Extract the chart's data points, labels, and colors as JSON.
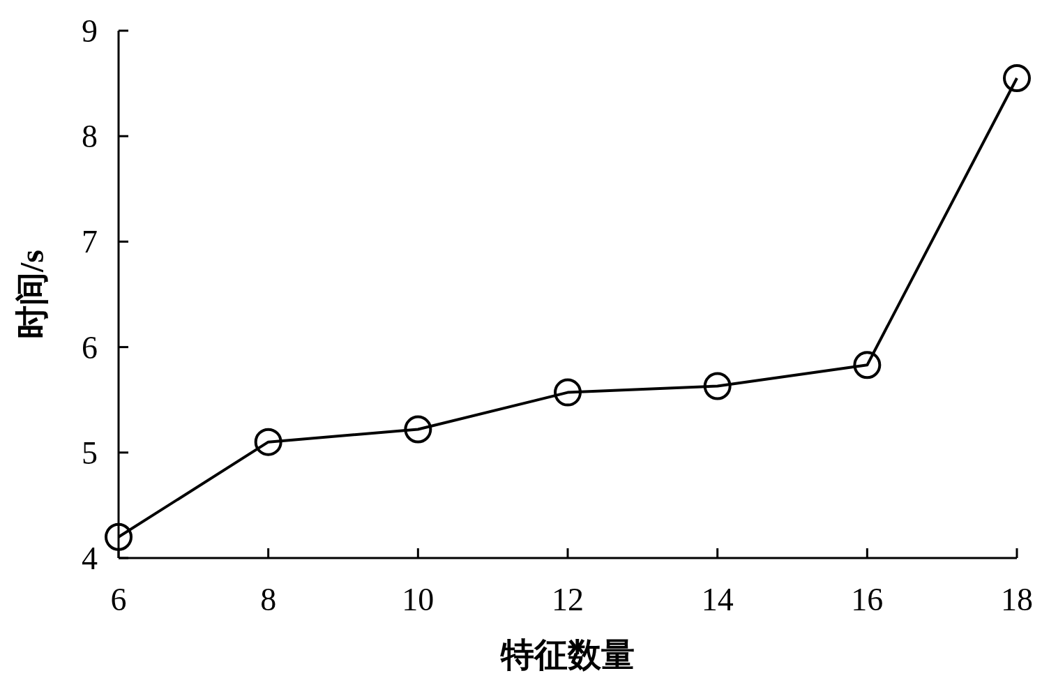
{
  "chart_data": {
    "type": "line",
    "xlabel": "特征数量",
    "ylabel": "时间/s",
    "x": [
      6,
      8,
      10,
      12,
      14,
      16,
      18
    ],
    "values": [
      4.2,
      5.1,
      5.22,
      5.57,
      5.63,
      5.83,
      8.55
    ],
    "color": "#000000",
    "marker": "circle",
    "xlim": [
      6,
      18
    ],
    "ylim": [
      4,
      9
    ],
    "xticks": [
      6,
      8,
      10,
      12,
      14,
      16,
      18
    ],
    "yticks": [
      4,
      5,
      6,
      7,
      8,
      9
    ]
  }
}
